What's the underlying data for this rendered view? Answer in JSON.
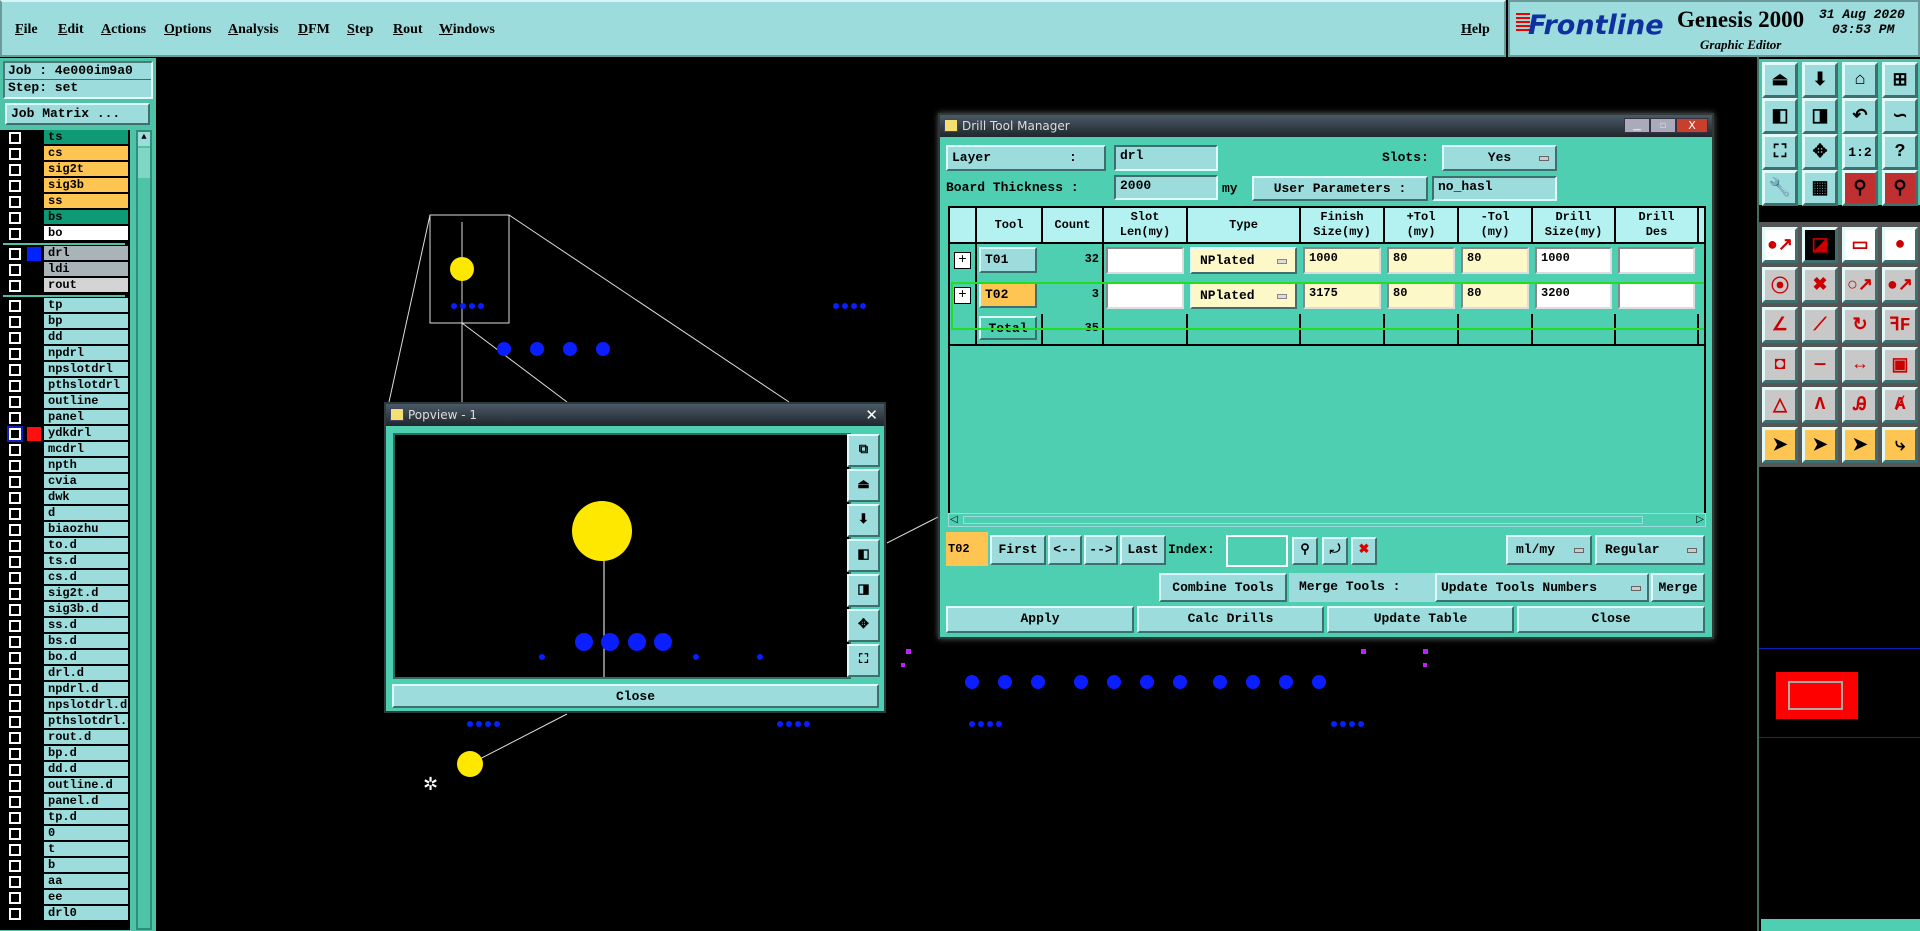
{
  "menu": {
    "items": [
      "File",
      "Edit",
      "Actions",
      "Options",
      "Analysis",
      "DFM",
      "Step",
      "Rout",
      "Windows"
    ],
    "help": "Help"
  },
  "brand": {
    "logo": "Frontline",
    "product": "Genesis 2000",
    "subtitle": "Graphic Editor",
    "date": "31 Aug 2020",
    "time": "03:53 PM"
  },
  "job": {
    "job_label": "Job : 4e000im9a0",
    "step_label": "Step: set",
    "matrix_button": "Job Matrix ..."
  },
  "layers": {
    "groups": [
      [
        {
          "name": "ts",
          "bg": "#0e9a74"
        },
        {
          "name": "cs",
          "bg": "#ffc552"
        },
        {
          "name": "sig2t",
          "bg": "#ffc552"
        },
        {
          "name": "sig3b",
          "bg": "#ffc552"
        },
        {
          "name": "ss",
          "bg": "#ffc552"
        },
        {
          "name": "bs",
          "bg": "#0e9a74"
        },
        {
          "name": "bo",
          "bg": "#ffffff"
        }
      ],
      [
        {
          "name": "drl",
          "bg": "#a8b4b8",
          "swatch": "#0022ff"
        },
        {
          "name": "ldi",
          "bg": "#a8b4b8"
        },
        {
          "name": "rout",
          "bg": "#d4d4d4"
        }
      ],
      [
        {
          "name": "tp"
        },
        {
          "name": "bp"
        },
        {
          "name": "dd"
        },
        {
          "name": "npdrl"
        },
        {
          "name": "npslotdrl"
        },
        {
          "name": "pthslotdrl"
        },
        {
          "name": "outline"
        },
        {
          "name": "panel"
        },
        {
          "name": "ydkdrl",
          "swatch": "#ff1010",
          "active": true
        },
        {
          "name": "mcdrl"
        },
        {
          "name": "npth"
        },
        {
          "name": "cvia"
        },
        {
          "name": "dwk"
        },
        {
          "name": "d"
        },
        {
          "name": "biaozhu"
        },
        {
          "name": "to.d"
        },
        {
          "name": "ts.d"
        },
        {
          "name": "cs.d"
        },
        {
          "name": "sig2t.d"
        },
        {
          "name": "sig3b.d"
        },
        {
          "name": "ss.d"
        },
        {
          "name": "bs.d"
        },
        {
          "name": "bo.d"
        },
        {
          "name": "drl.d"
        },
        {
          "name": "npdrl.d"
        },
        {
          "name": "npslotdrl.d"
        },
        {
          "name": "pthslotdrl.d"
        },
        {
          "name": "rout.d"
        },
        {
          "name": "bp.d"
        },
        {
          "name": "dd.d"
        },
        {
          "name": "outline.d"
        },
        {
          "name": "panel.d"
        },
        {
          "name": "tp.d"
        },
        {
          "name": "0"
        },
        {
          "name": "t"
        },
        {
          "name": "b"
        },
        {
          "name": "aa"
        },
        {
          "name": "ee"
        },
        {
          "name": "drl0"
        }
      ]
    ]
  },
  "drill_tool_manager": {
    "title": "Drill Tool Manager",
    "layer_label": "Layer          :",
    "layer_value": "drl",
    "slots_label": "Slots:",
    "slots_value": "Yes",
    "board_thickness_label": "Board Thickness :",
    "board_thickness_value": "2000",
    "board_thickness_unit": "my",
    "user_params_label": "User Parameters :",
    "user_params_value": "no_hasl",
    "columns": [
      "Tool",
      "Count",
      "Slot Len(my)",
      "Type",
      "Finish Size(my)",
      "+Tol (my)",
      "-Tol (my)",
      "Drill Size(my)",
      "Drill Des"
    ],
    "rows": [
      {
        "tool": "T01",
        "count": "32",
        "slot_len": "",
        "type": "NPlated",
        "finish": "1000",
        "ptol": "80",
        "mtol": "80",
        "drill": "1000",
        "des": ""
      },
      {
        "tool": "T02",
        "count": "3",
        "slot_len": "",
        "type": "NPlated",
        "finish": "3175",
        "ptol": "80",
        "mtol": "80",
        "drill": "3200",
        "des": ""
      }
    ],
    "total_label": "Total",
    "total_count": "35",
    "current_tool": "T02",
    "nav": {
      "first": "First",
      "prev": "<--",
      "next": "-->",
      "last": "Last",
      "index_label": "Index:",
      "index_value": ""
    },
    "units": "ml/my",
    "mode": "Regular",
    "combine_tools": "Combine Tools",
    "merge_label": "Merge Tools :",
    "merge_option": "Update Tools Numbers",
    "merge_button": "Merge",
    "apply": "Apply",
    "calc_drills": "Calc Drills",
    "update_table": "Update Table",
    "close": "Close"
  },
  "popview": {
    "title": "Popview - 1",
    "close": "Close"
  },
  "colors": {
    "panel": "#9ddcdc",
    "dialog": "#4fcfb2",
    "pad_yellow": "#ffe800",
    "pad_blue": "#0a1eff",
    "highlight": "#22dd22"
  },
  "toolbar": {
    "icons": [
      "open-up-icon",
      "open-down-icon",
      "home-icon",
      "grid-xy-icon",
      "pan-left-icon",
      "pan-right-icon",
      "undo-zoom-icon",
      "snake-icon",
      "zoom-fit-icon",
      "zoom-center-icon",
      "scale-1-2-icon",
      "help-icon",
      "tools-icon",
      "grid-icon",
      "net-icon",
      "net-alt-icon",
      "pad-move-icon",
      "select-box-icon",
      "ruler-icon",
      "pad-icon",
      "connect-icon",
      "delete-pad-icon",
      "move-pad-icon",
      "move-pad-filled-icon",
      "line-angle-icon",
      "line-icon",
      "rotate-icon",
      "mirror-icon",
      "box-move-icon",
      "line-split-icon",
      "measure-icon",
      "shapes-icon",
      "triangle-icon",
      "arc-a-icon",
      "arc-b-icon",
      "arc-c-icon",
      "select-arrow-icon",
      "select-box-arrow-icon",
      "select-poly-icon",
      "select-net-icon"
    ],
    "glyphs": [
      "⏏",
      "⬇",
      "⌂",
      "⊞",
      "◧",
      "◨",
      "↶",
      "∽",
      "⛶",
      "✥",
      "1:2",
      "?",
      "🔧",
      "▦",
      "⚲",
      "⚲",
      "●↗",
      "◪",
      "▭",
      "●",
      "⦿",
      "✖",
      "○↗",
      "●↗",
      "∠",
      "⟋",
      "↻",
      "ꟻF",
      "◘",
      "—",
      "↔",
      "▣",
      "△",
      "Λ",
      "Ꭿ",
      "Ⱥ",
      "➤",
      "➤",
      "➤",
      "⤷"
    ]
  }
}
